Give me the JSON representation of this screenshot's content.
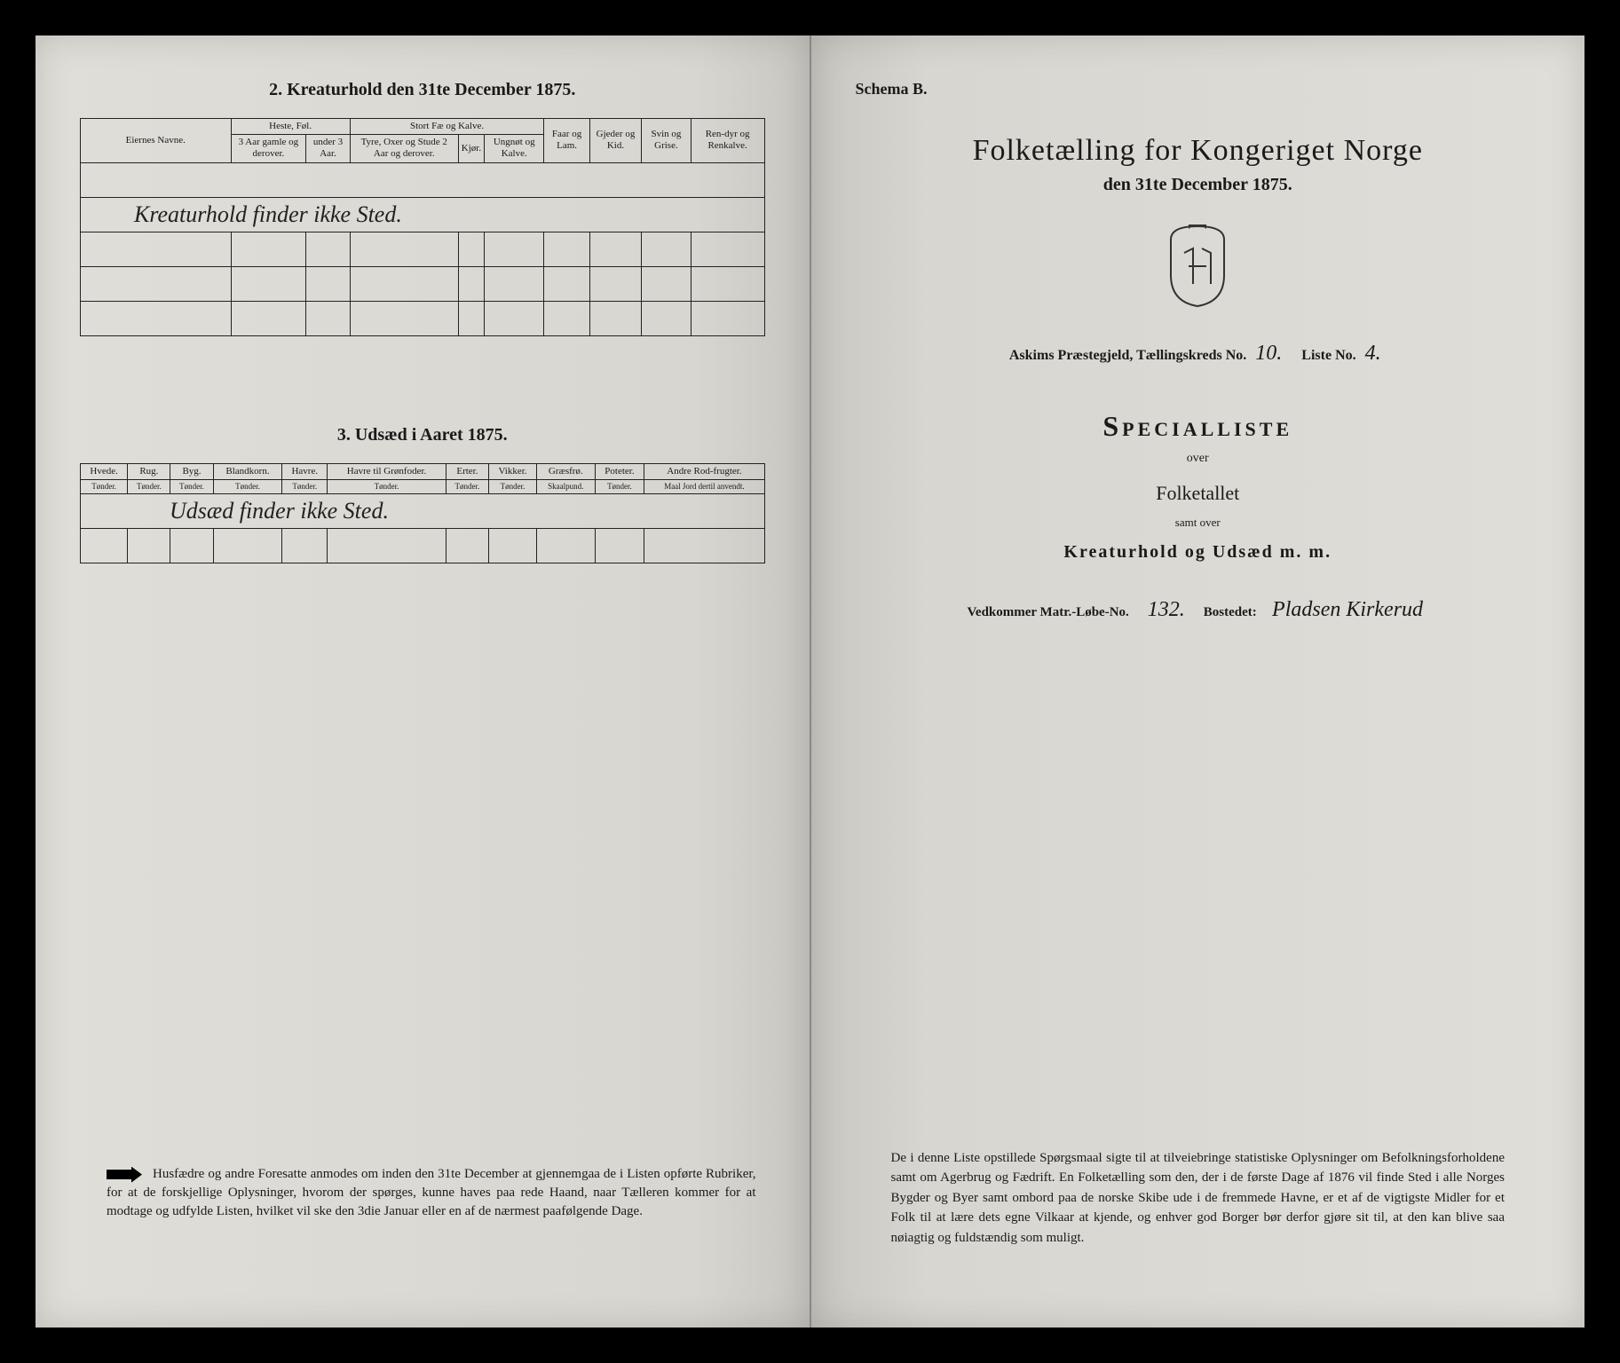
{
  "left": {
    "section2_title": "2. Kreaturhold den 31te December 1875.",
    "table2": {
      "col_owner": "Eiernes Navne.",
      "grp_horse": "Heste, Føl.",
      "grp_cattle": "Stort Fæ og Kalve.",
      "col_sheep": "Faar og Lam.",
      "col_goat": "Gjeder og Kid.",
      "col_pig": "Svin og Grise.",
      "col_rein": "Ren-dyr og Renkalve.",
      "horse_a": "3 Aar gamle og derover.",
      "horse_b": "under 3 Aar.",
      "cattle_a": "Tyre, Oxer og Stude 2 Aar og derover.",
      "cattle_b": "Kjør.",
      "cattle_c": "Ungnøt og Kalve.",
      "handwritten": "Kreaturhold finder ikke Sted."
    },
    "section3_title": "3. Udsæd i Aaret 1875.",
    "table3": {
      "cols": [
        {
          "h": "Hvede.",
          "u": "Tønder."
        },
        {
          "h": "Rug.",
          "u": "Tønder."
        },
        {
          "h": "Byg.",
          "u": "Tønder."
        },
        {
          "h": "Blandkorn.",
          "u": "Tønder."
        },
        {
          "h": "Havre.",
          "u": "Tønder."
        },
        {
          "h": "Havre til Grønfoder.",
          "u": "Tønder."
        },
        {
          "h": "Erter.",
          "u": "Tønder."
        },
        {
          "h": "Vikker.",
          "u": "Tønder."
        },
        {
          "h": "Græsfrø.",
          "u": "Skaalpund."
        },
        {
          "h": "Poteter.",
          "u": "Tønder."
        },
        {
          "h": "Andre Rod-frugter.",
          "u": "Maal Jord dertil anvendt."
        }
      ],
      "handwritten": "Udsæd finder ikke Sted."
    },
    "footnote": "Husfædre og andre Foresatte anmodes om inden den 31te December at gjennemgaa de i Listen opførte Rubriker, for at de forskjellige Oplysninger, hvorom der spørges, kunne haves paa rede Haand, naar Tælleren kommer for at modtage og udfylde Listen, hvilket vil ske den 3die Januar eller en af de nærmest paafølgende Dage."
  },
  "right": {
    "schema": "Schema B.",
    "title": "Folketælling for Kongeriget Norge",
    "date": "den 31te December 1875.",
    "parish_label": "Askims Præstegjeld, Tællingskreds No.",
    "parish_no": "10.",
    "list_label": "Liste No.",
    "list_no": "4.",
    "special": "Specialliste",
    "over": "over",
    "folketallet": "Folketallet",
    "samt": "samt over",
    "kreat": "Kreaturhold og Udsæd m. m.",
    "matr_label": "Vedkommer Matr.-Løbe-No.",
    "matr_no": "132.",
    "bosted_label": "Bostedet:",
    "bosted_val": "Pladsen Kirkerud",
    "footnote": "De i denne Liste opstillede Spørgsmaal sigte til at tilveiebringe statistiske Oplysninger om Befolkningsforholdene samt om Agerbrug og Fædrift. En Folketælling som den, der i de første Dage af 1876 vil finde Sted i alle Norges Bygder og Byer samt ombord paa de norske Skibe ude i de fremmede Havne, er et af de vigtigste Midler for et Folk til at lære dets egne Vilkaar at kjende, og enhver god Borger bør derfor gjøre sit til, at den kan blive saa nøiagtig og fuldstændig som muligt."
  },
  "colors": {
    "ink": "#1a1a1a",
    "paper_light": "#e8e6e0",
    "paper_shadow": "#c8c6c0",
    "border": "#222222",
    "bg": "#000000"
  }
}
